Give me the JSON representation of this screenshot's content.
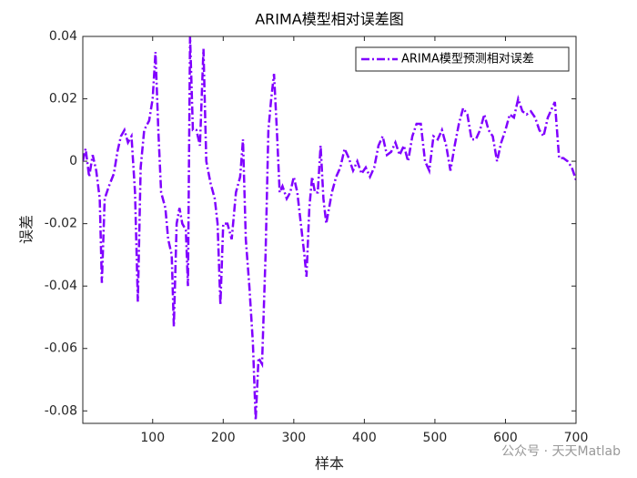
{
  "chart_data": {
    "type": "line",
    "title": "ARIMA模型相对误差图",
    "xlabel": "样本",
    "ylabel": "误差",
    "watermark": "公众号 · 天天Matlab",
    "legend": "upper right",
    "xlim": [
      1,
      700
    ],
    "ylim": [
      -0.084,
      0.04
    ],
    "xticks": [
      100,
      200,
      300,
      400,
      500,
      600,
      700
    ],
    "yticks": [
      -0.08,
      -0.06,
      -0.04,
      -0.02,
      0,
      0.02,
      0.04
    ],
    "x": [
      1,
      5,
      10,
      15,
      20,
      25,
      28,
      32,
      38,
      45,
      50,
      55,
      60,
      65,
      70,
      75,
      79,
      83,
      88,
      95,
      100,
      104,
      108,
      112,
      118,
      122,
      127,
      130,
      134,
      138,
      142,
      147,
      150,
      153,
      157,
      162,
      167,
      172,
      176,
      182,
      188,
      192,
      196,
      200,
      206,
      212,
      218,
      224,
      228,
      232,
      237,
      242,
      246,
      250,
      255,
      260,
      264,
      268,
      272,
      276,
      280,
      284,
      290,
      295,
      300,
      305,
      310,
      315,
      318,
      322,
      326,
      330,
      334,
      338,
      342,
      346,
      350,
      354,
      360,
      366,
      372,
      378,
      384,
      390,
      396,
      402,
      408,
      414,
      420,
      426,
      432,
      438,
      444,
      450,
      456,
      462,
      468,
      474,
      480,
      486,
      492,
      498,
      504,
      510,
      516,
      522,
      528,
      534,
      540,
      546,
      552,
      558,
      564,
      570,
      576,
      582,
      588,
      594,
      600,
      606,
      612,
      618,
      624,
      630,
      636,
      642,
      648,
      654,
      660,
      666,
      670,
      676,
      682,
      688,
      694,
      700
    ],
    "series": [
      {
        "name": "ARIMA模型预测相对误差",
        "color": "#8000ff",
        "values": [
          0.0,
          0.004,
          -0.005,
          0.002,
          -0.003,
          -0.012,
          -0.039,
          -0.012,
          -0.008,
          -0.004,
          0.003,
          0.008,
          0.01,
          0.006,
          0.008,
          -0.01,
          -0.045,
          -0.002,
          0.01,
          0.013,
          0.02,
          0.035,
          0.01,
          -0.01,
          -0.015,
          -0.025,
          -0.03,
          -0.053,
          -0.02,
          -0.015,
          -0.02,
          -0.022,
          -0.04,
          0.04,
          0.01,
          0.01,
          0.005,
          0.036,
          0.0,
          -0.007,
          -0.012,
          -0.02,
          -0.046,
          -0.02,
          -0.02,
          -0.025,
          -0.01,
          -0.005,
          0.007,
          -0.025,
          -0.04,
          -0.058,
          -0.083,
          -0.063,
          -0.065,
          -0.03,
          0.01,
          0.02,
          0.028,
          0.01,
          -0.01,
          -0.008,
          -0.012,
          -0.01,
          -0.005,
          -0.01,
          -0.02,
          -0.03,
          -0.037,
          -0.015,
          -0.005,
          -0.01,
          -0.01,
          0.005,
          -0.012,
          -0.02,
          -0.015,
          -0.01,
          -0.005,
          -0.002,
          0.004,
          0.001,
          -0.003,
          0.0,
          -0.004,
          -0.002,
          -0.005,
          -0.002,
          0.005,
          0.008,
          0.002,
          0.003,
          0.006,
          0.002,
          0.005,
          0.0,
          0.008,
          0.012,
          0.012,
          0.0,
          -0.003,
          0.008,
          0.007,
          0.01,
          0.005,
          -0.003,
          0.005,
          0.012,
          0.017,
          0.015,
          0.007,
          0.007,
          0.01,
          0.015,
          0.01,
          0.008,
          0.0,
          0.006,
          0.01,
          0.015,
          0.014,
          0.02,
          0.016,
          0.015,
          0.016,
          0.014,
          0.01,
          0.008,
          0.014,
          0.017,
          0.019,
          0.001,
          0.001,
          0.0,
          -0.002,
          -0.006
        ]
      }
    ]
  }
}
